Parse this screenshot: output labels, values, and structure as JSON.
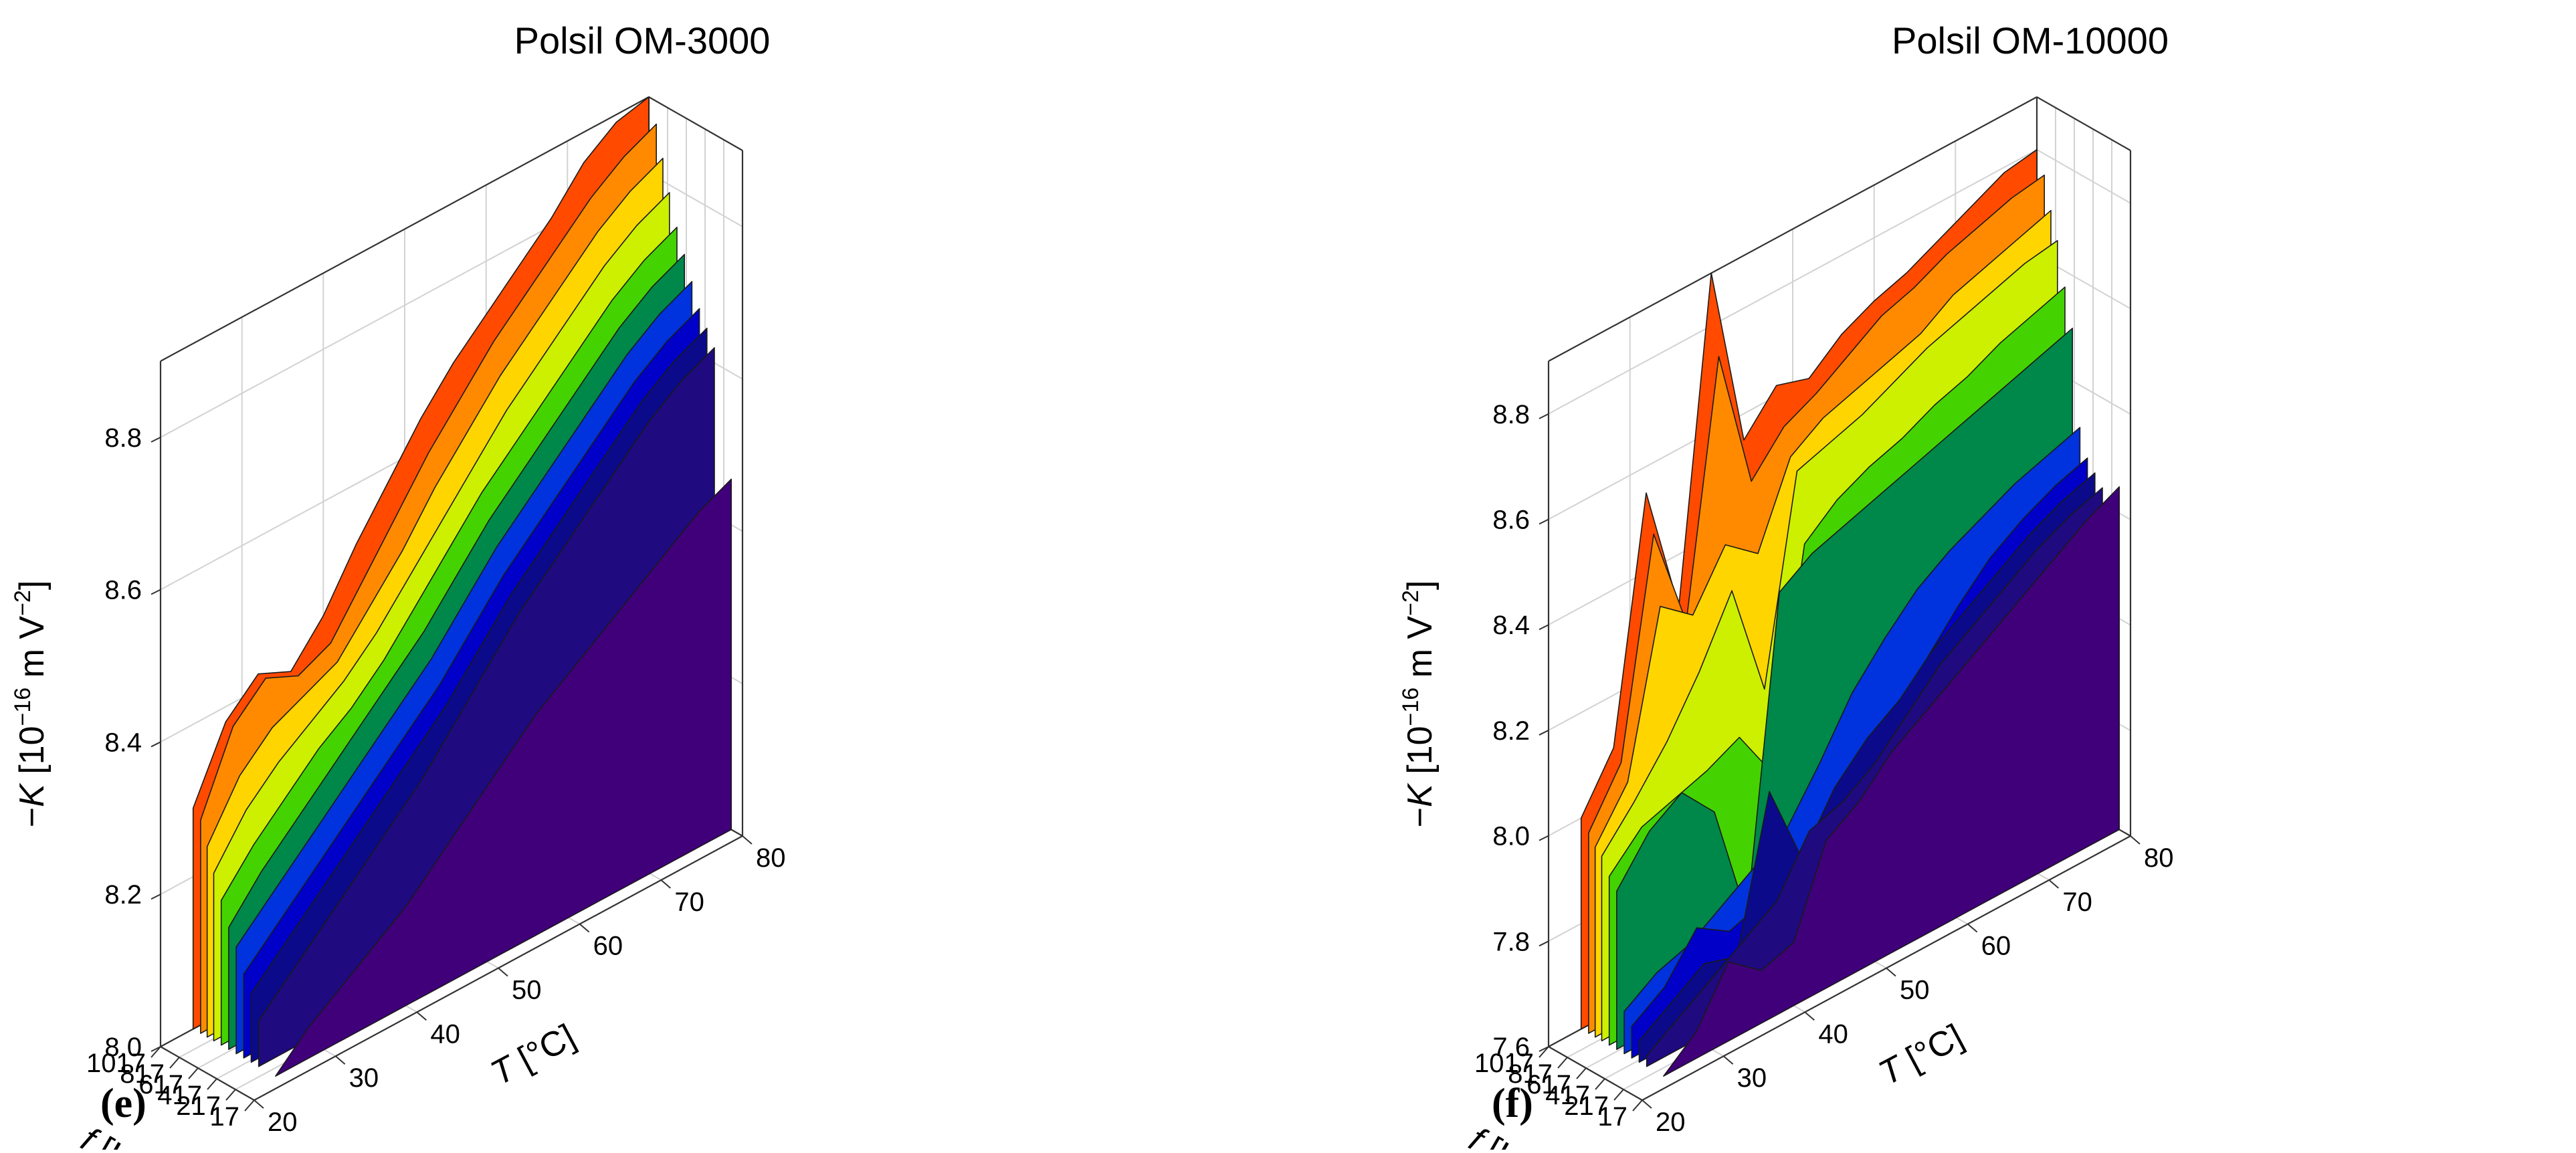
{
  "chart_data": [
    {
      "type": "area",
      "panel_tag": "(e)",
      "title": "Polsil OM-3000",
      "xlabel_italic": "f",
      "xlabel_rest": " [Hz]",
      "ylabel_italic": "T",
      "ylabel_rest": " [°C]",
      "zlabel_prefix": "−",
      "zlabel_italic": "K",
      "zlabel_mid": " [10",
      "zlabel_exp": "−16",
      "zlabel_mid2": " m V",
      "zlabel_exp2": "−2",
      "zlabel_end": "]",
      "f_ticks": [
        "1017",
        "817",
        "617",
        "417",
        "217",
        "17"
      ],
      "T_ticks": [
        "20",
        "30",
        "40",
        "50",
        "60",
        "70",
        "80"
      ],
      "K_ticks": [
        "8.0",
        "8.2",
        "8.4",
        "8.6",
        "8.8"
      ],
      "f_range": [
        17,
        1017
      ],
      "T_range": [
        20,
        80
      ],
      "K_range": [
        8.0,
        8.9
      ],
      "T": [
        24,
        28,
        32,
        36,
        40,
        44,
        48,
        52,
        56,
        60,
        64,
        68,
        72,
        76,
        80
      ],
      "series": [
        {
          "f": 1017,
          "color": "#ff4a00",
          "values": [
            8.29,
            8.38,
            8.42,
            8.4,
            8.45,
            8.52,
            8.58,
            8.64,
            8.69,
            8.73,
            8.77,
            8.81,
            8.86,
            8.89,
            8.9
          ]
        },
        {
          "f": 937,
          "color": "#ff8a00",
          "values": [
            8.28,
            8.38,
            8.42,
            8.4,
            8.42,
            8.48,
            8.54,
            8.6,
            8.65,
            8.7,
            8.74,
            8.78,
            8.82,
            8.85,
            8.87
          ]
        },
        {
          "f": 867,
          "color": "#ffd500",
          "values": [
            8.25,
            8.32,
            8.36,
            8.38,
            8.4,
            8.45,
            8.5,
            8.56,
            8.61,
            8.66,
            8.7,
            8.74,
            8.78,
            8.81,
            8.83
          ]
        },
        {
          "f": 797,
          "color": "#ccf000",
          "values": [
            8.22,
            8.28,
            8.32,
            8.35,
            8.38,
            8.42,
            8.47,
            8.52,
            8.57,
            8.62,
            8.66,
            8.7,
            8.74,
            8.77,
            8.79
          ]
        },
        {
          "f": 717,
          "color": "#44d300",
          "values": [
            8.19,
            8.24,
            8.28,
            8.32,
            8.35,
            8.39,
            8.44,
            8.49,
            8.54,
            8.58,
            8.62,
            8.66,
            8.7,
            8.73,
            8.75
          ]
        },
        {
          "f": 637,
          "color": "#00874a",
          "values": [
            8.16,
            8.21,
            8.25,
            8.29,
            8.33,
            8.37,
            8.41,
            8.46,
            8.51,
            8.55,
            8.59,
            8.63,
            8.67,
            8.7,
            8.72
          ]
        },
        {
          "f": 557,
          "color": "#0033dd",
          "values": [
            8.14,
            8.18,
            8.22,
            8.26,
            8.3,
            8.34,
            8.38,
            8.43,
            8.48,
            8.52,
            8.56,
            8.6,
            8.64,
            8.67,
            8.69
          ]
        },
        {
          "f": 477,
          "color": "#0000c8",
          "values": [
            8.11,
            8.15,
            8.19,
            8.23,
            8.27,
            8.31,
            8.35,
            8.4,
            8.45,
            8.49,
            8.53,
            8.57,
            8.61,
            8.64,
            8.66
          ]
        },
        {
          "f": 397,
          "color": "#0b0a8a",
          "values": [
            8.09,
            8.13,
            8.17,
            8.21,
            8.25,
            8.29,
            8.33,
            8.38,
            8.43,
            8.47,
            8.51,
            8.55,
            8.59,
            8.62,
            8.64
          ]
        },
        {
          "f": 317,
          "color": "#1f0a80",
          "values": [
            8.06,
            8.1,
            8.14,
            8.18,
            8.22,
            8.26,
            8.31,
            8.36,
            8.41,
            8.45,
            8.49,
            8.53,
            8.57,
            8.6,
            8.62
          ]
        },
        {
          "f": 137,
          "color": "#40007a",
          "values": [
            8.0,
            8.04,
            8.07,
            8.1,
            8.13,
            8.17,
            8.21,
            8.25,
            8.29,
            8.32,
            8.35,
            8.38,
            8.41,
            8.44,
            8.46
          ]
        }
      ]
    },
    {
      "type": "area",
      "panel_tag": "(f)",
      "title": "Polsil OM-10000",
      "xlabel_italic": "f",
      "xlabel_rest": " [Hz]",
      "ylabel_italic": "T",
      "ylabel_rest": " [°C]",
      "zlabel_prefix": "−",
      "zlabel_italic": "K",
      "zlabel_mid": " [10",
      "zlabel_exp": "−16",
      "zlabel_mid2": " m V",
      "zlabel_exp2": "−2",
      "zlabel_end": "]",
      "f_ticks": [
        "1017",
        "817",
        "617",
        "417",
        "217",
        "17"
      ],
      "T_ticks": [
        "20",
        "30",
        "40",
        "50",
        "60",
        "70",
        "80"
      ],
      "K_ticks": [
        "7.6",
        "7.8",
        "8.0",
        "8.2",
        "8.4",
        "8.6",
        "8.8"
      ],
      "f_range": [
        17,
        1017
      ],
      "T_range": [
        20,
        80
      ],
      "K_range": [
        7.6,
        8.9
      ],
      "T": [
        24,
        28,
        32,
        36,
        40,
        44,
        48,
        52,
        56,
        60,
        64,
        68,
        72,
        76,
        80
      ],
      "series": [
        {
          "f": 1017,
          "color": "#ff4a00",
          "values": [
            8.0,
            8.1,
            8.55,
            8.3,
            8.9,
            8.55,
            8.62,
            8.6,
            8.65,
            8.68,
            8.7,
            8.73,
            8.76,
            8.79,
            8.8
          ]
        },
        {
          "f": 937,
          "color": "#ff8a00",
          "values": [
            7.98,
            8.08,
            8.48,
            8.28,
            8.75,
            8.48,
            8.55,
            8.58,
            8.62,
            8.66,
            8.68,
            8.71,
            8.73,
            8.75,
            8.76
          ]
        },
        {
          "f": 867,
          "color": "#ffd500",
          "values": [
            7.96,
            8.05,
            8.35,
            8.3,
            8.4,
            8.35,
            8.5,
            8.54,
            8.56,
            8.58,
            8.6,
            8.64,
            8.66,
            8.68,
            8.7
          ]
        },
        {
          "f": 797,
          "color": "#ccf000",
          "values": [
            7.95,
            8.02,
            8.1,
            8.2,
            8.32,
            8.1,
            8.48,
            8.5,
            8.52,
            8.55,
            8.58,
            8.6,
            8.62,
            8.64,
            8.65
          ]
        },
        {
          "f": 717,
          "color": "#44d300",
          "values": [
            7.92,
            7.98,
            8.0,
            8.02,
            8.05,
            7.95,
            8.35,
            8.4,
            8.43,
            8.45,
            8.48,
            8.5,
            8.53,
            8.55,
            8.57
          ]
        },
        {
          "f": 637,
          "color": "#00874a",
          "values": [
            7.9,
            7.98,
            8.02,
            7.95,
            7.72,
            8.3,
            8.34,
            8.36,
            8.38,
            8.4,
            8.42,
            8.44,
            8.46,
            8.48,
            8.5
          ]
        },
        {
          "f": 557,
          "color": "#0033dd",
          "values": [
            7.68,
            7.72,
            7.74,
            7.78,
            7.82,
            7.86,
            7.95,
            8.05,
            8.12,
            8.18,
            8.22,
            8.25,
            8.28,
            8.3,
            8.32
          ]
        },
        {
          "f": 477,
          "color": "#0000c8",
          "values": [
            7.66,
            7.7,
            7.78,
            7.74,
            7.76,
            7.8,
            7.84,
            7.9,
            7.98,
            8.05,
            8.12,
            8.18,
            8.22,
            8.25,
            8.27
          ]
        },
        {
          "f": 397,
          "color": "#0b0a8a",
          "values": [
            7.64,
            7.68,
            7.72,
            7.7,
            7.98,
            7.82,
            7.92,
            7.98,
            8.02,
            8.08,
            8.12,
            8.16,
            8.2,
            8.23,
            8.25
          ]
        },
        {
          "f": 317,
          "color": "#1f0a80",
          "values": [
            7.62,
            7.66,
            7.7,
            7.74,
            7.78,
            7.88,
            7.9,
            7.94,
            8.0,
            8.06,
            8.1,
            8.14,
            8.18,
            8.21,
            8.23
          ]
        },
        {
          "f": 137,
          "color": "#40007a",
          "values": [
            7.6,
            7.65,
            7.75,
            7.7,
            7.72,
            7.88,
            7.92,
            7.98,
            8.02,
            8.06,
            8.1,
            8.14,
            8.18,
            8.22,
            8.25
          ]
        }
      ]
    }
  ]
}
